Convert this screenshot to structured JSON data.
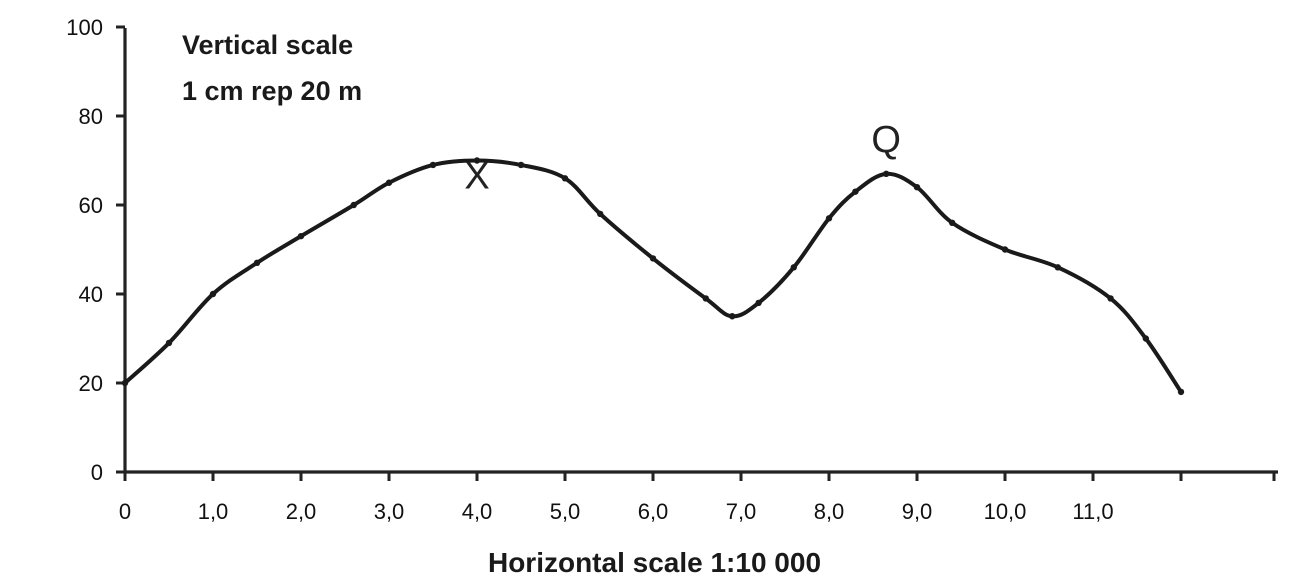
{
  "chart_data": {
    "type": "line",
    "notes": [
      "Vertical scale",
      "1 cm rep 20 m"
    ],
    "xlabel": "Horizontal scale 1:10 000",
    "ylabel": "",
    "xlim": [
      0,
      12.8
    ],
    "ylim": [
      0,
      100
    ],
    "x_ticks": [
      0,
      1,
      2,
      3,
      4,
      5,
      6,
      7,
      8,
      9,
      10,
      11,
      12
    ],
    "x_tick_labels": [
      "0",
      "1,0",
      "2,0",
      "3,0",
      "4,0",
      "5,0",
      "6,0",
      "7,0",
      "8,0",
      "9,0",
      "10,0",
      "11,0",
      ""
    ],
    "y_ticks": [
      0,
      20,
      40,
      60,
      80,
      100
    ],
    "y_tick_labels": [
      "0",
      "20",
      "40",
      "60",
      "80",
      "100"
    ],
    "grid": false,
    "series": [
      {
        "x": [
          0,
          0.5,
          1.0,
          1.5,
          2.0,
          2.6,
          3.0,
          3.5,
          4.0,
          4.5,
          5.0,
          5.4,
          6.0,
          6.6,
          6.9,
          7.2,
          7.6,
          8.0,
          8.3,
          8.65,
          9.0,
          9.4,
          10.0,
          10.6,
          11.2,
          11.6,
          12.0
        ],
        "y": [
          20,
          29,
          40,
          47,
          53,
          60,
          65,
          69,
          70,
          69,
          66,
          58,
          48,
          39,
          35,
          38,
          46,
          57,
          63,
          67,
          64,
          56,
          50,
          46,
          39,
          30,
          18
        ]
      }
    ],
    "annotations": [
      {
        "text": "X",
        "x": 4.0,
        "y": 70
      },
      {
        "text": "Q",
        "x": 8.65,
        "y": 67
      }
    ]
  }
}
